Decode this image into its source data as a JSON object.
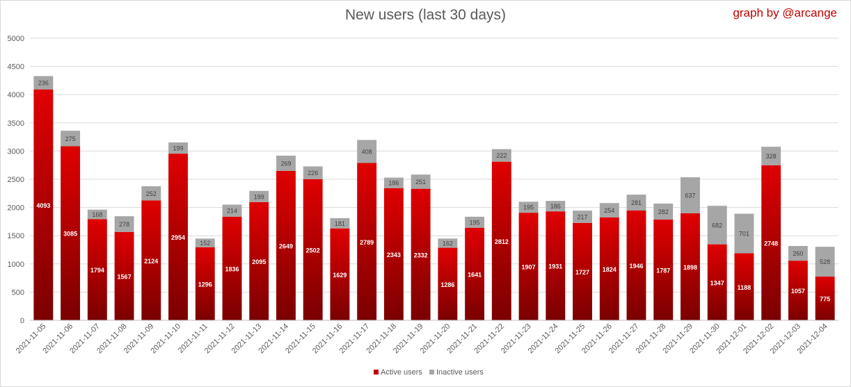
{
  "chart_data": {
    "type": "bar",
    "stacked": true,
    "title": "New users (last 30 days)",
    "credit": "graph by @arcange",
    "xlabel": "",
    "ylabel": "",
    "ylim": [
      0,
      5000
    ],
    "yticks": [
      0,
      500,
      1000,
      1500,
      2000,
      2500,
      3000,
      3500,
      4000,
      4500,
      5000
    ],
    "grid": true,
    "legend_position": "bottom",
    "categories": [
      "2021-11-05",
      "2021-11-06",
      "2021-11-07",
      "2021-11-08",
      "2021-11-09",
      "2021-11-10",
      "2021-11-11",
      "2021-11-12",
      "2021-11-13",
      "2021-11-14",
      "2021-11-15",
      "2021-11-16",
      "2021-11-17",
      "2021-11-18",
      "2021-11-19",
      "2021-11-20",
      "2021-11-21",
      "2021-11-22",
      "2021-11-23",
      "2021-11-24",
      "2021-11-25",
      "2021-11-26",
      "2021-11-27",
      "2021-11-28",
      "2021-11-29",
      "2021-11-30",
      "2021-12-01",
      "2021-12-02",
      "2021-12-03",
      "2021-12-04"
    ],
    "series": [
      {
        "name": "Active users",
        "color": "#c00000",
        "values": [
          4093,
          3085,
          1794,
          1567,
          2124,
          2954,
          1296,
          1836,
          2095,
          2649,
          2502,
          1629,
          2789,
          2343,
          2332,
          1286,
          1641,
          2812,
          1907,
          1931,
          1727,
          1824,
          1946,
          1787,
          1898,
          1347,
          1188,
          2748,
          1057,
          775
        ]
      },
      {
        "name": "Inactive users",
        "color": "#a6a6a6",
        "values": [
          236,
          275,
          168,
          278,
          252,
          199,
          152,
          214,
          199,
          269,
          226,
          181,
          408,
          186,
          251,
          162,
          195,
          222,
          195,
          186,
          217,
          254,
          281,
          282,
          637,
          682,
          701,
          328,
          260,
          528
        ]
      }
    ]
  }
}
